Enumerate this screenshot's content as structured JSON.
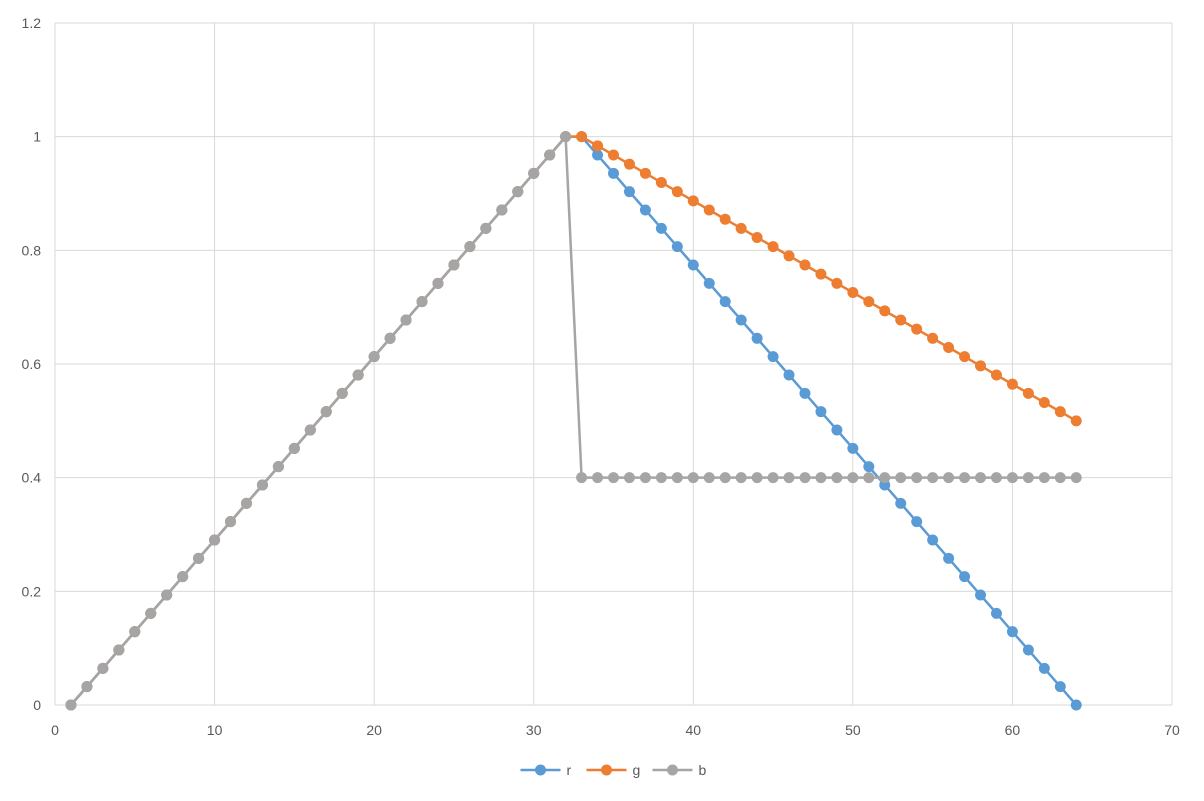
{
  "chart_data": {
    "type": "line",
    "title": "",
    "xlabel": "",
    "ylabel": "",
    "xlim": [
      0,
      70
    ],
    "ylim": [
      0,
      1.2
    ],
    "x_ticks": [
      0,
      10,
      20,
      30,
      40,
      50,
      60,
      70
    ],
    "y_ticks": [
      0,
      0.2,
      0.4,
      0.6,
      0.8,
      1,
      1.2
    ],
    "x_tick_labels": [
      "0",
      "10",
      "20",
      "30",
      "40",
      "50",
      "60",
      "70"
    ],
    "y_tick_labels": [
      "0",
      "0.2",
      "0.4",
      "0.6",
      "0.8",
      "1",
      "1.2"
    ],
    "grid": true,
    "legend_position": "bottom",
    "x": [
      1,
      2,
      3,
      4,
      5,
      6,
      7,
      8,
      9,
      10,
      11,
      12,
      13,
      14,
      15,
      16,
      17,
      18,
      19,
      20,
      21,
      22,
      23,
      24,
      25,
      26,
      27,
      28,
      29,
      30,
      31,
      32,
      33,
      34,
      35,
      36,
      37,
      38,
      39,
      40,
      41,
      42,
      43,
      44,
      45,
      46,
      47,
      48,
      49,
      50,
      51,
      52,
      53,
      54,
      55,
      56,
      57,
      58,
      59,
      60,
      61,
      62,
      63,
      64
    ],
    "series": [
      {
        "name": "r",
        "color": "#5b9bd5",
        "values": [
          0,
          0.0323,
          0.0645,
          0.0968,
          0.129,
          0.1613,
          0.1935,
          0.2258,
          0.2581,
          0.2903,
          0.3226,
          0.3548,
          0.3871,
          0.4194,
          0.4516,
          0.4839,
          0.5161,
          0.5484,
          0.5806,
          0.6129,
          0.6452,
          0.6774,
          0.7097,
          0.7419,
          0.7742,
          0.8065,
          0.8387,
          0.871,
          0.9032,
          0.9355,
          0.9677,
          1,
          1,
          0.9677,
          0.9355,
          0.9032,
          0.871,
          0.8387,
          0.8065,
          0.7742,
          0.7419,
          0.7097,
          0.6774,
          0.6452,
          0.6129,
          0.5806,
          0.5484,
          0.5161,
          0.4839,
          0.4516,
          0.4194,
          0.3871,
          0.3548,
          0.3226,
          0.2903,
          0.2581,
          0.2258,
          0.1935,
          0.1613,
          0.129,
          0.0968,
          0.0645,
          0.0323,
          0
        ]
      },
      {
        "name": "g",
        "color": "#ed7d31",
        "values": [
          0,
          0.0323,
          0.0645,
          0.0968,
          0.129,
          0.1613,
          0.1935,
          0.2258,
          0.2581,
          0.2903,
          0.3226,
          0.3548,
          0.3871,
          0.4194,
          0.4516,
          0.4839,
          0.5161,
          0.5484,
          0.5806,
          0.6129,
          0.6452,
          0.6774,
          0.7097,
          0.7419,
          0.7742,
          0.8065,
          0.8387,
          0.871,
          0.9032,
          0.9355,
          0.9677,
          1,
          1,
          0.9839,
          0.9677,
          0.9516,
          0.9355,
          0.9194,
          0.9032,
          0.8871,
          0.871,
          0.8548,
          0.8387,
          0.8226,
          0.8065,
          0.7903,
          0.7742,
          0.7581,
          0.7419,
          0.7258,
          0.7097,
          0.6935,
          0.6774,
          0.6613,
          0.6452,
          0.629,
          0.6129,
          0.5968,
          0.5806,
          0.5645,
          0.5484,
          0.5323,
          0.5161,
          0.5
        ]
      },
      {
        "name": "b",
        "color": "#a5a5a5",
        "values": [
          0,
          0.0323,
          0.0645,
          0.0968,
          0.129,
          0.1613,
          0.1935,
          0.2258,
          0.2581,
          0.2903,
          0.3226,
          0.3548,
          0.3871,
          0.4194,
          0.4516,
          0.4839,
          0.5161,
          0.5484,
          0.5806,
          0.6129,
          0.6452,
          0.6774,
          0.7097,
          0.7419,
          0.7742,
          0.8065,
          0.8387,
          0.871,
          0.9032,
          0.9355,
          0.9677,
          1,
          0.4,
          0.4,
          0.4,
          0.4,
          0.4,
          0.4,
          0.4,
          0.4,
          0.4,
          0.4,
          0.4,
          0.4,
          0.4,
          0.4,
          0.4,
          0.4,
          0.4,
          0.4,
          0.4,
          0.4,
          0.4,
          0.4,
          0.4,
          0.4,
          0.4,
          0.4,
          0.4,
          0.4,
          0.4,
          0.4,
          0.4,
          0.4
        ]
      }
    ]
  }
}
